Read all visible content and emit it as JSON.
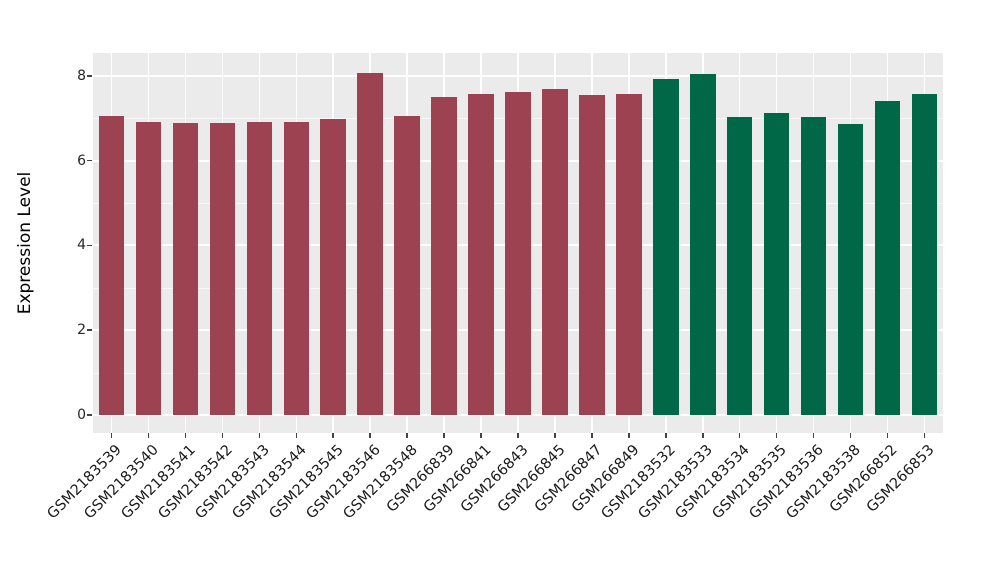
{
  "chart_data": {
    "type": "bar",
    "title": "",
    "xlabel": "",
    "ylabel": "Expression Level",
    "ylim": [
      -0.42,
      8.48
    ],
    "yticks": [
      0,
      2,
      4,
      6,
      8
    ],
    "yticks_minor": [
      1,
      3,
      5,
      7
    ],
    "grid": "white major and minor horizontal lines plus vertical category lines on gray panel",
    "legend": "none",
    "panel_bg": "#EBEBEB",
    "grid_color": "#FFFFFF",
    "tick_color": "#444444",
    "text_color": "#1a1a1a",
    "group_colors": {
      "groupA": "#9D4251",
      "groupB": "#006847"
    },
    "categories": [
      "GSM2183539",
      "GSM2183540",
      "GSM2183541",
      "GSM2183542",
      "GSM2183543",
      "GSM2183544",
      "GSM2183545",
      "GSM2183546",
      "GSM2183548",
      "GSM266839",
      "GSM266841",
      "GSM266843",
      "GSM266845",
      "GSM266847",
      "GSM266849",
      "GSM2183532",
      "GSM2183533",
      "GSM2183534",
      "GSM2183535",
      "GSM2183536",
      "GSM2183538",
      "GSM266852",
      "GSM266853"
    ],
    "bars": [
      {
        "label": "GSM2183539",
        "value": 7.05,
        "group": "groupA"
      },
      {
        "label": "GSM2183540",
        "value": 6.9,
        "group": "groupA"
      },
      {
        "label": "GSM2183541",
        "value": 6.88,
        "group": "groupA"
      },
      {
        "label": "GSM2183542",
        "value": 6.88,
        "group": "groupA"
      },
      {
        "label": "GSM2183543",
        "value": 6.9,
        "group": "groupA"
      },
      {
        "label": "GSM2183544",
        "value": 6.91,
        "group": "groupA"
      },
      {
        "label": "GSM2183545",
        "value": 6.97,
        "group": "groupA"
      },
      {
        "label": "GSM2183546",
        "value": 8.07,
        "group": "groupA"
      },
      {
        "label": "GSM2183548",
        "value": 7.05,
        "group": "groupA"
      },
      {
        "label": "GSM266839",
        "value": 7.51,
        "group": "groupA"
      },
      {
        "label": "GSM266841",
        "value": 7.56,
        "group": "groupA"
      },
      {
        "label": "GSM266843",
        "value": 7.63,
        "group": "groupA"
      },
      {
        "label": "GSM266845",
        "value": 7.7,
        "group": "groupA"
      },
      {
        "label": "GSM266847",
        "value": 7.55,
        "group": "groupA"
      },
      {
        "label": "GSM266849",
        "value": 7.57,
        "group": "groupA"
      },
      {
        "label": "GSM2183532",
        "value": 7.93,
        "group": "groupB"
      },
      {
        "label": "GSM2183533",
        "value": 8.04,
        "group": "groupB"
      },
      {
        "label": "GSM2183534",
        "value": 7.02,
        "group": "groupB"
      },
      {
        "label": "GSM2183535",
        "value": 7.12,
        "group": "groupB"
      },
      {
        "label": "GSM2183536",
        "value": 7.04,
        "group": "groupB"
      },
      {
        "label": "GSM2183538",
        "value": 6.86,
        "group": "groupB"
      },
      {
        "label": "GSM266852",
        "value": 7.41,
        "group": "groupB"
      },
      {
        "label": "GSM266853",
        "value": 7.58,
        "group": "groupB"
      }
    ]
  }
}
